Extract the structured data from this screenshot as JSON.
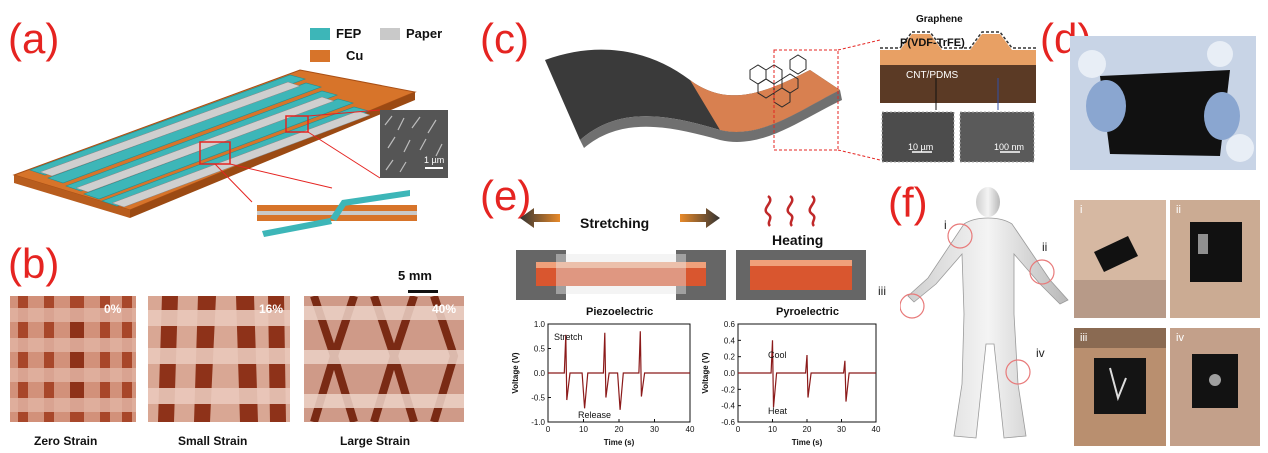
{
  "panels": {
    "a": {
      "letter": "(a)",
      "legend": {
        "fep": "FEP",
        "paper": "Paper",
        "cu": "Cu"
      },
      "sem_scale": "1 µm"
    },
    "b": {
      "letter": "(b)",
      "scale_bar": "5 mm",
      "images": [
        {
          "percent": "0%",
          "caption": "Zero Strain"
        },
        {
          "percent": "16%",
          "caption": "Small Strain"
        },
        {
          "percent": "40%",
          "caption": "Large Strain"
        }
      ]
    },
    "c": {
      "letter": "(c)",
      "layers": {
        "graphene": "Graphene",
        "pvdf": "P(VDF-TrFE)",
        "cnt": "CNT/PDMS"
      },
      "sem_scales": [
        "10 µm",
        "100 nm"
      ]
    },
    "d": {
      "letter": "(d)"
    },
    "e": {
      "letter": "(e)",
      "stretching": "Stretching",
      "heating": "Heating",
      "piezo_label": "Piezoelectric",
      "pyro_label": "Pyroelectric"
    },
    "f": {
      "letter": "(f)",
      "markers": [
        "i",
        "ii",
        "iii",
        "iv"
      ],
      "photo_labels": [
        "i",
        "ii",
        "iii",
        "iv"
      ]
    }
  },
  "chart_data": [
    {
      "type": "line",
      "title": "",
      "xlabel": "Time (s)",
      "ylabel": "Voltage (V)",
      "xlim": [
        0,
        40
      ],
      "ylim": [
        -1.0,
        1.0
      ],
      "xticks": [
        0,
        10,
        20,
        30,
        40
      ],
      "yticks": [
        -1.0,
        -0.5,
        0.0,
        0.5,
        1.0
      ],
      "annotations": [
        "Stretch",
        "Release"
      ],
      "spikes": [
        {
          "t": 5,
          "peak": 0.78,
          "trough": -0.55
        },
        {
          "t": 10,
          "peak": 0.0,
          "trough": -0.72
        },
        {
          "t": 16,
          "peak": 0.82,
          "trough": -0.5
        },
        {
          "t": 20,
          "peak": 0.0,
          "trough": -0.75
        },
        {
          "t": 26,
          "peak": 0.85,
          "trough": -0.48
        }
      ]
    },
    {
      "type": "line",
      "title": "",
      "xlabel": "Time (s)",
      "ylabel": "Voltage (V)",
      "xlim": [
        0,
        40
      ],
      "ylim": [
        -0.6,
        0.6
      ],
      "xticks": [
        0,
        10,
        20,
        30,
        40
      ],
      "yticks": [
        -0.6,
        -0.4,
        -0.2,
        0.0,
        0.2,
        0.4,
        0.6
      ],
      "annotations": [
        "Cool",
        "Heat"
      ],
      "spikes": [
        {
          "t": 10,
          "peak": 0.4,
          "trough": -0.42
        },
        {
          "t": 20,
          "peak": 0.22,
          "trough": -0.3
        },
        {
          "t": 31,
          "peak": 0.15,
          "trough": -0.35
        }
      ]
    }
  ]
}
